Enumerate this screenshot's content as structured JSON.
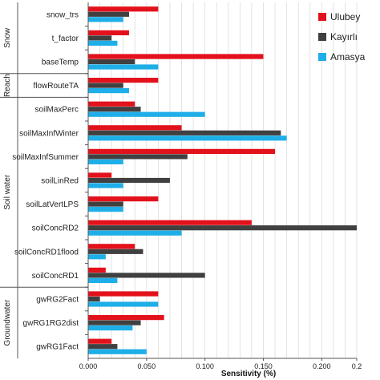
{
  "chart_data": {
    "type": "bar",
    "orientation": "horizontal",
    "xlabel": "Sensitivity (%)",
    "xlim": [
      0,
      0.23
    ],
    "xticks": [
      "0.000",
      "0.050",
      "0.100",
      "0.150",
      "0.200",
      "0.2"
    ],
    "xtick_values": [
      0,
      0.05,
      0.1,
      0.15,
      0.2,
      0.23
    ],
    "grid": true,
    "legend_position": "top-right",
    "categories": [
      "snow_trs",
      "t_factor",
      "baseTemp",
      "flowRouteTA",
      "soilMaxPerc",
      "soilMaxInfWinter",
      "soilMaxInfSummer",
      "soilLinRed",
      "soilLatVertLPS",
      "soilConcRD2",
      "soilConcRD1flood",
      "soilConcRD1",
      "gwRG2Fact",
      "gwRG1RG2dist",
      "gwRG1Fact"
    ],
    "groups": [
      {
        "name": "Snow",
        "start": 0,
        "end": 2
      },
      {
        "name": "Reach",
        "start": 3,
        "end": 3
      },
      {
        "name": "Soil water",
        "start": 4,
        "end": 11
      },
      {
        "name": "Groundwater",
        "start": 12,
        "end": 14
      }
    ],
    "series": [
      {
        "name": "Ulubey",
        "color": "#e3111b",
        "values": [
          0.06,
          0.035,
          0.15,
          0.06,
          0.04,
          0.08,
          0.16,
          0.02,
          0.06,
          0.14,
          0.04,
          0.015,
          0.06,
          0.065,
          0.02
        ]
      },
      {
        "name": "Kayırlı",
        "color": "#404040",
        "values": [
          0.035,
          0.02,
          0.04,
          0.03,
          0.045,
          0.165,
          0.085,
          0.07,
          0.03,
          0.23,
          0.047,
          0.1,
          0.01,
          0.045,
          0.025
        ]
      },
      {
        "name": "Amasya",
        "color": "#1eaee8",
        "values": [
          0.03,
          0.025,
          0.06,
          0.035,
          0.1,
          0.17,
          0.03,
          0.03,
          0.03,
          0.08,
          0.015,
          0.025,
          0.06,
          0.038,
          0.05
        ]
      }
    ]
  }
}
